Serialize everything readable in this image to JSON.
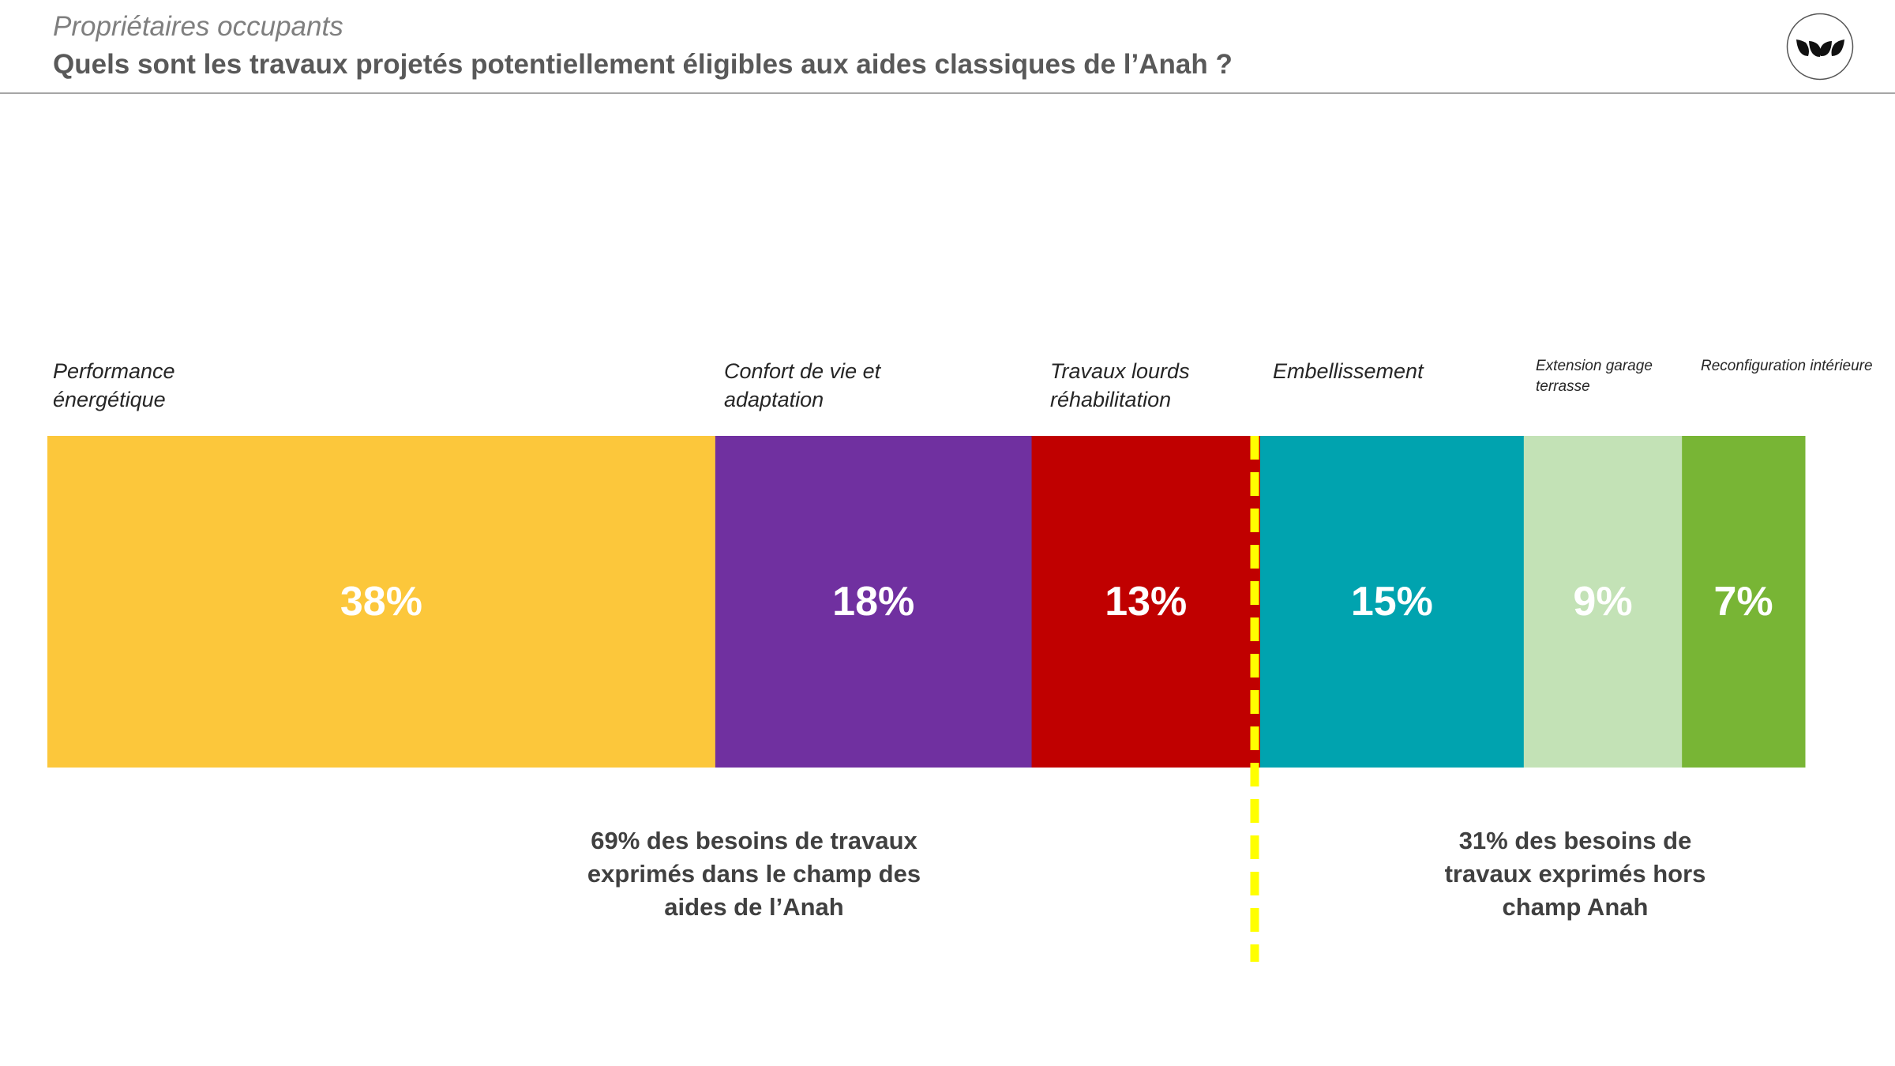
{
  "header": {
    "subtitle": "Propriétaires occupants",
    "title": "Quels sont les travaux projetés potentiellement éligibles aux aides classiques de l’Anah ?",
    "logo_icon": "leaves-logo-icon"
  },
  "chart_data": {
    "type": "bar",
    "orientation": "horizontal-stacked",
    "categories": [
      "Performance énergétique",
      "Confort de vie et adaptation",
      "Travaux lourds réhabilitation",
      "Embellissement",
      "Extension garage terrasse",
      "Reconfiguration intérieure"
    ],
    "category_lines": [
      [
        "Performance",
        "énergétique"
      ],
      [
        "Confort de vie et",
        "adaptation"
      ],
      [
        "Travaux lourds",
        "réhabilitation"
      ],
      [
        "Embellissement"
      ],
      [
        "Extension garage",
        "terrasse"
      ],
      [
        "Reconfiguration intérieure"
      ]
    ],
    "values": [
      38,
      18,
      13,
      15,
      9,
      7
    ],
    "value_labels": [
      "38%",
      "18%",
      "13%",
      "15%",
      "9%",
      "7%"
    ],
    "colors": [
      "#fcc73b",
      "#7030a0",
      "#c00000",
      "#00a3af",
      "#c3e2b6",
      "#78b535"
    ],
    "value_label_colors": [
      "#ffffff",
      "#ffffff",
      "#ffffff",
      "#ffffff",
      "#ffffff",
      "#ffffff"
    ],
    "divider_after_index": 2,
    "divider_color": "#ffff00",
    "groups": [
      {
        "text": "69% des besoins de travaux exprimés dans le champ des aides de l’Anah",
        "lines": [
          "69% des besoins de travaux",
          "exprimés dans le champ des",
          "aides de l’Anah"
        ]
      },
      {
        "text": "31% des besoins de travaux exprimés hors champ Anah",
        "lines": [
          "31% des besoins de",
          "travaux exprimés hors",
          "champ Anah"
        ]
      }
    ]
  }
}
